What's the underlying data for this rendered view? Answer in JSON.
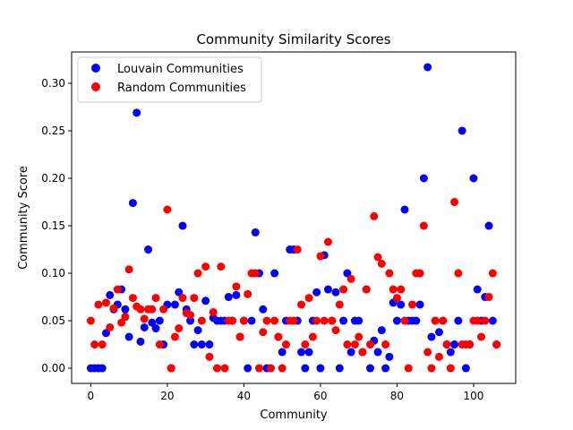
{
  "chart_data": {
    "type": "scatter",
    "title": "Community Similarity Scores",
    "xlabel": "Community",
    "ylabel": "Community Score",
    "xlim": [
      -5,
      111
    ],
    "ylim": [
      -0.016,
      0.333
    ],
    "xticks": [
      0,
      20,
      40,
      60,
      80,
      100
    ],
    "yticks": [
      0.0,
      0.05,
      0.1,
      0.15,
      0.2,
      0.25,
      0.3
    ],
    "ytick_labels": [
      "0.00",
      "0.05",
      "0.10",
      "0.15",
      "0.20",
      "0.25",
      "0.30"
    ],
    "grid": false,
    "legend_position": "top-left",
    "series": [
      {
        "name": "Louvain Communities",
        "color": "#0000ff",
        "x": [
          0,
          1,
          2,
          3,
          4,
          5,
          6,
          7,
          8,
          9,
          10,
          11,
          12,
          13,
          14,
          15,
          16,
          17,
          18,
          19,
          20,
          21,
          22,
          23,
          24,
          25,
          26,
          27,
          28,
          29,
          30,
          31,
          32,
          33,
          34,
          35,
          36,
          37,
          38,
          39,
          40,
          41,
          42,
          43,
          44,
          45,
          46,
          47,
          48,
          49,
          50,
          51,
          52,
          53,
          54,
          55,
          56,
          57,
          58,
          59,
          60,
          61,
          62,
          63,
          64,
          65,
          66,
          67,
          68,
          69,
          70,
          71,
          72,
          73,
          74,
          75,
          76,
          77,
          78,
          79,
          80,
          81,
          82,
          83,
          84,
          85,
          86,
          87,
          88,
          89,
          90,
          91,
          92,
          93,
          94,
          95,
          96,
          97,
          98,
          99,
          100,
          101,
          102,
          103,
          104,
          105,
          106
        ],
        "y": [
          0.0,
          0.0,
          0.0,
          0.0,
          0.037,
          0.077,
          0.062,
          0.067,
          0.083,
          0.062,
          0.033,
          0.174,
          0.269,
          0.028,
          0.043,
          0.125,
          0.048,
          0.042,
          0.05,
          0.025,
          0.067,
          0.0,
          0.067,
          0.08,
          0.15,
          0.062,
          0.05,
          0.025,
          0.04,
          0.025,
          0.071,
          0.025,
          0.053,
          0.05,
          0.05,
          0.05,
          0.075,
          0.05,
          0.077,
          0.033,
          0.05,
          0.0,
          0.05,
          0.143,
          0.1,
          0.062,
          0.0,
          0.0,
          0.1,
          0.033,
          0.017,
          0.05,
          0.125,
          0.125,
          0.05,
          0.017,
          0.0,
          0.017,
          0.05,
          0.08,
          0.0,
          0.119,
          0.083,
          0.05,
          0.08,
          0.0,
          0.05,
          0.1,
          0.017,
          0.05,
          0.05,
          0.017,
          0.083,
          0.0,
          0.029,
          0.017,
          0.04,
          0.0,
          0.012,
          0.069,
          0.05,
          0.067,
          0.167,
          0.05,
          0.05,
          0.05,
          0.067,
          0.2,
          0.317,
          0.033,
          0.05,
          0.038,
          0.05,
          0.025,
          0.017,
          0.025,
          0.05,
          0.25,
          0.0,
          0.025,
          0.2,
          0.083,
          0.05,
          0.075,
          0.15,
          0.05,
          0.025
        ]
      },
      {
        "name": "Random Communities",
        "color": "#ff0000",
        "x": [
          0,
          1,
          2,
          3,
          4,
          5,
          6,
          7,
          8,
          9,
          10,
          11,
          12,
          13,
          14,
          15,
          16,
          17,
          18,
          19,
          20,
          21,
          22,
          23,
          24,
          25,
          26,
          27,
          28,
          29,
          30,
          31,
          32,
          33,
          34,
          35,
          36,
          37,
          38,
          39,
          40,
          41,
          42,
          43,
          44,
          45,
          46,
          47,
          48,
          49,
          50,
          51,
          52,
          53,
          54,
          55,
          56,
          57,
          58,
          59,
          60,
          61,
          62,
          63,
          64,
          65,
          66,
          67,
          68,
          69,
          70,
          71,
          72,
          73,
          74,
          75,
          76,
          77,
          78,
          79,
          80,
          81,
          82,
          83,
          84,
          85,
          86,
          87,
          88,
          89,
          90,
          91,
          92,
          93,
          94,
          95,
          96,
          97,
          98,
          99,
          100,
          101,
          102,
          103,
          104,
          105,
          106
        ],
        "y": [
          0.05,
          0.025,
          0.067,
          0.025,
          0.069,
          0.043,
          0.063,
          0.083,
          0.048,
          0.054,
          0.104,
          0.074,
          0.065,
          0.062,
          0.052,
          0.062,
          0.062,
          0.074,
          0.025,
          0.062,
          0.167,
          0.0,
          0.033,
          0.042,
          0.074,
          0.058,
          0.056,
          0.074,
          0.1,
          0.05,
          0.107,
          0.012,
          0.059,
          0.0,
          0.107,
          0.0,
          0.05,
          0.05,
          0.086,
          0.033,
          0.05,
          0.078,
          0.1,
          0.1,
          0.0,
          0.038,
          0.05,
          0.0,
          0.05,
          0.033,
          0.0,
          0.025,
          0.05,
          0.05,
          0.125,
          0.067,
          0.025,
          0.074,
          0.033,
          0.05,
          0.118,
          0.05,
          0.133,
          0.05,
          0.04,
          0.067,
          0.083,
          0.025,
          0.094,
          0.025,
          0.033,
          0.017,
          0.083,
          0.025,
          0.16,
          0.117,
          0.11,
          0.025,
          0.1,
          0.083,
          0.074,
          0.083,
          0.05,
          0.0,
          0.067,
          0.1,
          0.1,
          0.15,
          0.017,
          0.0,
          0.05,
          0.012,
          0.05,
          0.025,
          0.0,
          0.175,
          0.1,
          0.025,
          0.025,
          0.025,
          0.05,
          0.05,
          0.033,
          0.05,
          0.075,
          0.1,
          0.025
        ]
      }
    ]
  }
}
